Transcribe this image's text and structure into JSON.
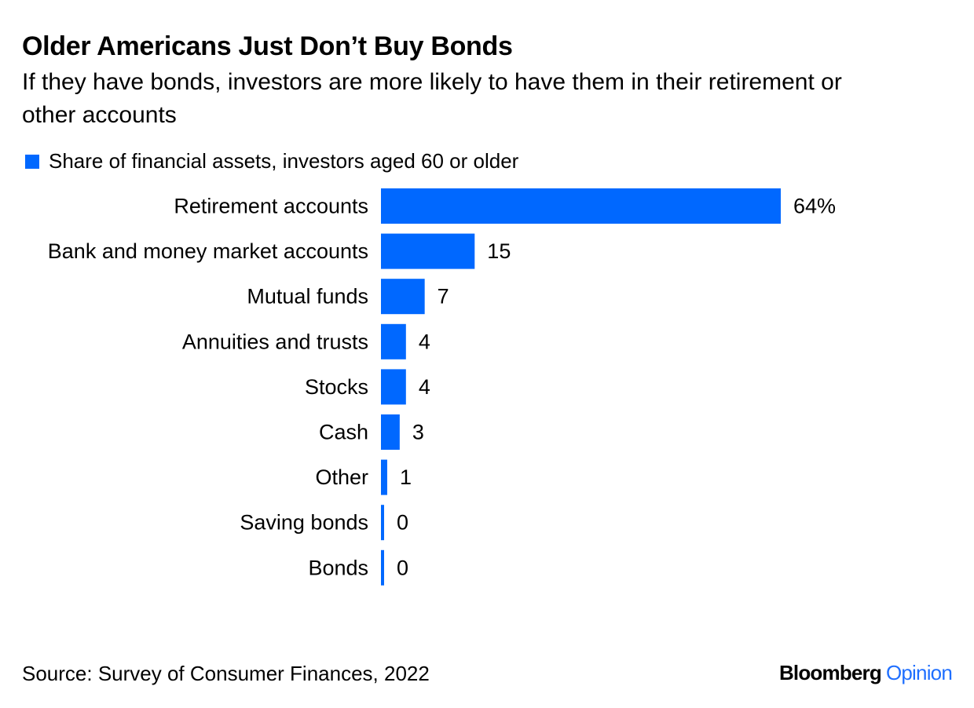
{
  "title": "Older Americans Just Don’t Buy Bonds",
  "subtitle": "If they have bonds, investors are more likely to have them in their retirement or other accounts",
  "source": "Source: Survey of Consumer Finances, 2022",
  "brand": {
    "name": "Bloomberg",
    "suffix": "Opinion",
    "suffix_color": "#1f6fff"
  },
  "colors": {
    "bar": "#0068ff",
    "text": "#000000"
  },
  "chart_data": {
    "type": "bar",
    "orientation": "horizontal",
    "categories": [
      "Retirement accounts",
      "Bank and money market accounts",
      "Mutual funds",
      "Annuities and trusts",
      "Stocks",
      "Cash",
      "Other",
      "Saving bonds",
      "Bonds"
    ],
    "series": [
      {
        "name": "Share of financial assets, investors aged 60 or older",
        "values": [
          64,
          15,
          7,
          4,
          4,
          3,
          1,
          0,
          0
        ]
      }
    ],
    "value_labels": [
      "64%",
      "15",
      "7",
      "4",
      "4",
      "3",
      "1",
      "0",
      "0"
    ],
    "xlim": [
      0,
      64
    ],
    "grid": false,
    "axis_visible": false,
    "legend_position": "top-left"
  }
}
